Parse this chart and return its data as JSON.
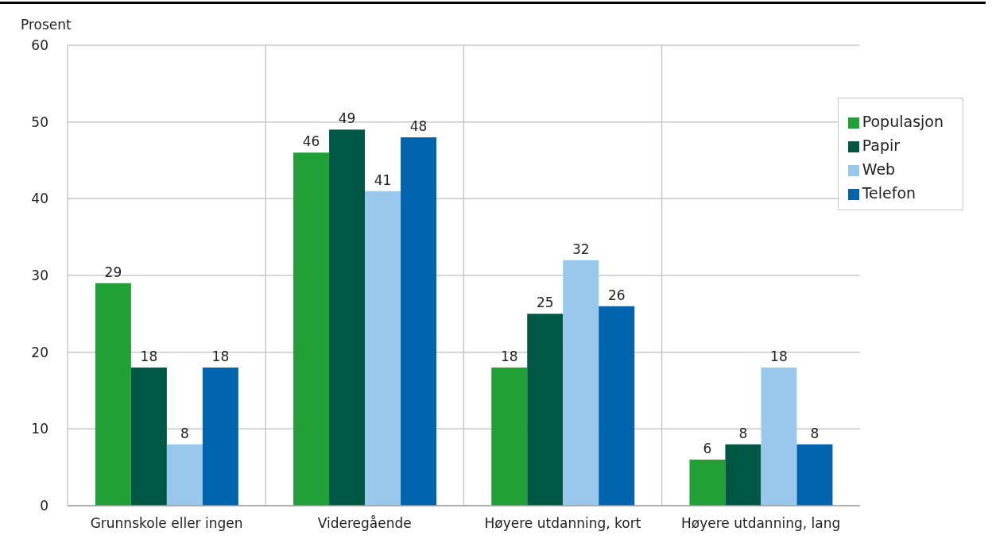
{
  "chart_data": {
    "type": "bar",
    "ylabel": "Prosent",
    "categories": [
      "Grunnskole eller ingen",
      "Videregående",
      "Høyere utdanning, kort",
      "Høyere utdanning, lang"
    ],
    "series": [
      {
        "name": "Populasjon",
        "color": "#21a038",
        "values": [
          29,
          46,
          18,
          6
        ]
      },
      {
        "name": "Papir",
        "color": "#005743",
        "values": [
          18,
          49,
          25,
          8
        ]
      },
      {
        "name": "Web",
        "color": "#9ac8ec",
        "values": [
          8,
          41,
          32,
          18
        ]
      },
      {
        "name": "Telefon",
        "color": "#0063ae",
        "values": [
          18,
          48,
          26,
          8
        ]
      }
    ],
    "ylim": [
      0,
      60
    ],
    "yticks": [
      0,
      10,
      20,
      30,
      40,
      50,
      60
    ],
    "grid": true,
    "legend": "top right",
    "data_labels": true
  }
}
